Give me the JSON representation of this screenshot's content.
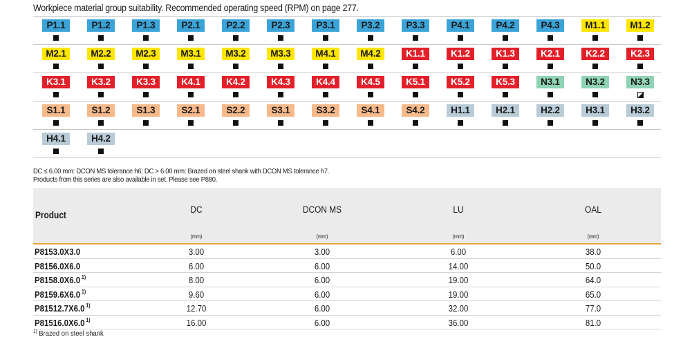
{
  "heading": "Workpiece material group suitability. Recommended operating speed (RPM) on page 277.",
  "colors": {
    "P": "#3aa3d8",
    "M": "#ffe600",
    "K": "#e3202a",
    "N": "#8fd3b5",
    "S": "#f6b98a",
    "H": "#b9cbd6",
    "accent_line": "#e8a437"
  },
  "material_rows": [
    [
      {
        "code": "P1.1",
        "group": "P",
        "mark": "full"
      },
      {
        "code": "P1.2",
        "group": "P",
        "mark": "full"
      },
      {
        "code": "P1.3",
        "group": "P",
        "mark": "full"
      },
      {
        "code": "P2.1",
        "group": "P",
        "mark": "full"
      },
      {
        "code": "P2.2",
        "group": "P",
        "mark": "full"
      },
      {
        "code": "P2.3",
        "group": "P",
        "mark": "full"
      },
      {
        "code": "P3.1",
        "group": "P",
        "mark": "full"
      },
      {
        "code": "P3.2",
        "group": "P",
        "mark": "full"
      },
      {
        "code": "P3.3",
        "group": "P",
        "mark": "full"
      },
      {
        "code": "P4.1",
        "group": "P",
        "mark": "full"
      },
      {
        "code": "P4.2",
        "group": "P",
        "mark": "full"
      },
      {
        "code": "P4.3",
        "group": "P",
        "mark": "full"
      },
      {
        "code": "M1.1",
        "group": "M",
        "mark": "full"
      },
      {
        "code": "M1.2",
        "group": "M",
        "mark": "full"
      }
    ],
    [
      {
        "code": "M2.1",
        "group": "M",
        "mark": "full"
      },
      {
        "code": "M2.2",
        "group": "M",
        "mark": "full"
      },
      {
        "code": "M2.3",
        "group": "M",
        "mark": "full"
      },
      {
        "code": "M3.1",
        "group": "M",
        "mark": "full"
      },
      {
        "code": "M3.2",
        "group": "M",
        "mark": "full"
      },
      {
        "code": "M3.3",
        "group": "M",
        "mark": "full"
      },
      {
        "code": "M4.1",
        "group": "M",
        "mark": "full"
      },
      {
        "code": "M4.2",
        "group": "M",
        "mark": "full"
      },
      {
        "code": "K1.1",
        "group": "K",
        "mark": "full"
      },
      {
        "code": "K1.2",
        "group": "K",
        "mark": "full"
      },
      {
        "code": "K1.3",
        "group": "K",
        "mark": "full"
      },
      {
        "code": "K2.1",
        "group": "K",
        "mark": "full"
      },
      {
        "code": "K2.2",
        "group": "K",
        "mark": "full"
      },
      {
        "code": "K2.3",
        "group": "K",
        "mark": "full"
      }
    ],
    [
      {
        "code": "K3.1",
        "group": "K",
        "mark": "full"
      },
      {
        "code": "K3.2",
        "group": "K",
        "mark": "full"
      },
      {
        "code": "K3.3",
        "group": "K",
        "mark": "full"
      },
      {
        "code": "K4.1",
        "group": "K",
        "mark": "full"
      },
      {
        "code": "K4.2",
        "group": "K",
        "mark": "full"
      },
      {
        "code": "K4.3",
        "group": "K",
        "mark": "full"
      },
      {
        "code": "K4.4",
        "group": "K",
        "mark": "full"
      },
      {
        "code": "K4.5",
        "group": "K",
        "mark": "full"
      },
      {
        "code": "K5.1",
        "group": "K",
        "mark": "full"
      },
      {
        "code": "K5.2",
        "group": "K",
        "mark": "full"
      },
      {
        "code": "K5.3",
        "group": "K",
        "mark": "full"
      },
      {
        "code": "N3.1",
        "group": "N",
        "mark": "full"
      },
      {
        "code": "N3.2",
        "group": "N",
        "mark": "full"
      },
      {
        "code": "N3.3",
        "group": "N",
        "mark": "half"
      }
    ],
    [
      {
        "code": "S1.1",
        "group": "S",
        "mark": "full"
      },
      {
        "code": "S1.2",
        "group": "S",
        "mark": "full"
      },
      {
        "code": "S1.3",
        "group": "S",
        "mark": "full"
      },
      {
        "code": "S2.1",
        "group": "S",
        "mark": "full"
      },
      {
        "code": "S2.2",
        "group": "S",
        "mark": "full"
      },
      {
        "code": "S3.1",
        "group": "S",
        "mark": "full"
      },
      {
        "code": "S3.2",
        "group": "S",
        "mark": "full"
      },
      {
        "code": "S4.1",
        "group": "S",
        "mark": "full"
      },
      {
        "code": "S4.2",
        "group": "S",
        "mark": "full"
      },
      {
        "code": "H1.1",
        "group": "H",
        "mark": "full"
      },
      {
        "code": "H2.1",
        "group": "H",
        "mark": "full"
      },
      {
        "code": "H2.2",
        "group": "H",
        "mark": "full"
      },
      {
        "code": "H3.1",
        "group": "H",
        "mark": "full"
      },
      {
        "code": "H3.2",
        "group": "H",
        "mark": "full"
      }
    ],
    [
      {
        "code": "H4.1",
        "group": "H",
        "mark": "full"
      },
      {
        "code": "H4.2",
        "group": "H",
        "mark": "full"
      }
    ]
  ],
  "notes": [
    "DC ≤ 6.00 mm: DCON MS tolerance h6; DC > 6.00 mm: Brazed on steel shank with DCON MS tolerance h7.",
    "Products from this series are also available in set. Please see P880."
  ],
  "table": {
    "columns": [
      {
        "label": "Product",
        "unit": ""
      },
      {
        "label": "DC",
        "unit": "(mm)"
      },
      {
        "label": "DCON MS",
        "unit": "(mm)"
      },
      {
        "label": "LU",
        "unit": "(mm)"
      },
      {
        "label": "OAL",
        "unit": "(mm)"
      }
    ],
    "rows": [
      {
        "product": "P8153.0X3.0",
        "note": "",
        "dc": "3.00",
        "dcon": "3.00",
        "lu": "6.00",
        "oal": "38.0"
      },
      {
        "product": "P8156.0X6.0",
        "note": "",
        "dc": "6.00",
        "dcon": "6.00",
        "lu": "14.00",
        "oal": "50.0"
      },
      {
        "product": "P8158.0X6.0",
        "note": "1)",
        "dc": "8.00",
        "dcon": "6.00",
        "lu": "19.00",
        "oal": "64.0"
      },
      {
        "product": "P8159.6X6.0",
        "note": "1)",
        "dc": "9.60",
        "dcon": "6.00",
        "lu": "19.00",
        "oal": "65.0"
      },
      {
        "product": "P81512.7X6.0",
        "note": "1)",
        "dc": "12.70",
        "dcon": "6.00",
        "lu": "32.00",
        "oal": "77.0"
      },
      {
        "product": "P81516.0X6.0",
        "note": "1)",
        "dc": "16.00",
        "dcon": "6.00",
        "lu": "36.00",
        "oal": "81.0"
      }
    ]
  },
  "footnote": {
    "marker": "1)",
    "text": "Brazed on steel shank"
  }
}
